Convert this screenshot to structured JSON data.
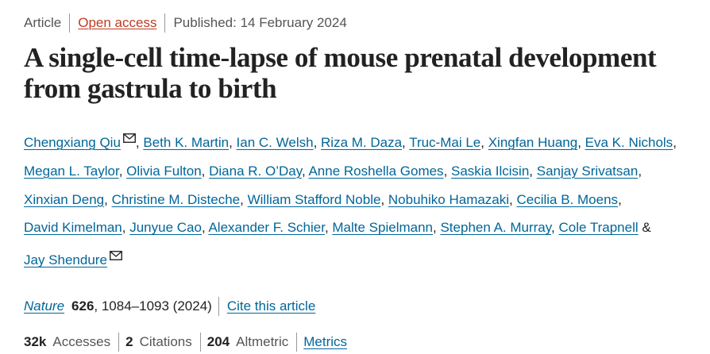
{
  "article_meta": {
    "type": "Article",
    "access": "Open access",
    "published": "Published: 14 February 2024"
  },
  "title": "A single-cell time-lapse of mouse prenatal development from gastrula to birth",
  "authors": [
    {
      "name": "Chengxiang Qiu",
      "mail": true
    },
    {
      "name": "Beth K. Martin"
    },
    {
      "name": "Ian C. Welsh"
    },
    {
      "name": "Riza M. Daza"
    },
    {
      "name": "Truc-Mai Le"
    },
    {
      "name": "Xingfan Huang"
    },
    {
      "name": "Eva K. Nichols"
    },
    {
      "name": "Megan L. Taylor"
    },
    {
      "name": "Olivia Fulton"
    },
    {
      "name": "Diana R. O’Day"
    },
    {
      "name": "Anne Roshella Gomes"
    },
    {
      "name": "Saskia Ilcisin"
    },
    {
      "name": "Sanjay Srivatsan"
    },
    {
      "name": "Xinxian Deng"
    },
    {
      "name": "Christine M. Disteche"
    },
    {
      "name": "William Stafford Noble"
    },
    {
      "name": "Nobuhiko Hamazaki"
    },
    {
      "name": "Cecilia B. Moens"
    },
    {
      "name": "David Kimelman"
    },
    {
      "name": "Junyue Cao"
    },
    {
      "name": "Alexander F. Schier"
    },
    {
      "name": "Malte Spielmann"
    },
    {
      "name": "Stephen A. Murray"
    },
    {
      "name": "Cole Trapnell"
    },
    {
      "name": "Jay Shendure",
      "mail": true
    }
  ],
  "authors_conjunction": "&",
  "citation": {
    "journal": "Nature",
    "volume": "626",
    "pages_year": ", 1084–1093 (2024)",
    "cite_link": "Cite this article"
  },
  "metrics": {
    "accesses_count": "32k",
    "accesses_label": "Accesses",
    "citations_count": "2",
    "citations_label": "Citations",
    "altmetric_count": "204",
    "altmetric_label": "Altmetric",
    "metrics_link": "Metrics"
  },
  "colors": {
    "link": "#006699",
    "open_access": "#c13b22",
    "text": "#222222",
    "muted": "#555555"
  }
}
